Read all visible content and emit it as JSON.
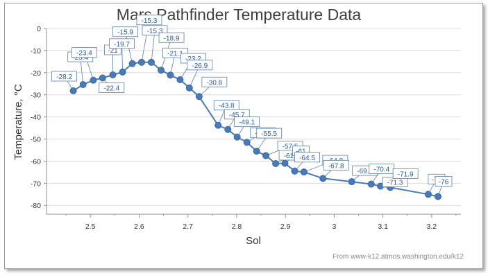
{
  "chart_data": {
    "type": "line",
    "title": "Mars Pathfinder Temperature Data",
    "xlabel": "Sol",
    "ylabel": "Temperature, °C",
    "xlim": [
      2.41,
      3.26
    ],
    "ylim": [
      -84,
      0
    ],
    "x_ticks": [
      "2.5",
      "2.6",
      "2.7",
      "2.8",
      "2.9",
      "3",
      "3.1",
      "3.2"
    ],
    "y_ticks": [
      "0",
      "-10",
      "-20",
      "-30",
      "-40",
      "-50",
      "-60",
      "-70",
      "-80"
    ],
    "grid": "horizontal",
    "legend": "none",
    "series": [
      {
        "points": [
          {
            "x": 2.465,
            "y": -28.2,
            "label": "-28.2"
          },
          {
            "x": 2.485,
            "y": -25.4,
            "label": "-25.4"
          },
          {
            "x": 2.506,
            "y": -23.4,
            "label": "-23.4"
          },
          {
            "x": 2.525,
            "y": -22.4,
            "label": "-22.4"
          },
          {
            "x": 2.546,
            "y": -21,
            "label": "-21"
          },
          {
            "x": 2.566,
            "y": -19.7,
            "label": "-19.7"
          },
          {
            "x": 2.586,
            "y": -15.9,
            "label": "-15.9"
          },
          {
            "x": 2.605,
            "y": -15.3,
            "label": "-15.3"
          },
          {
            "x": 2.625,
            "y": -15.3,
            "label": "-15.3"
          },
          {
            "x": 2.645,
            "y": -18.9,
            "label": "-18.9"
          },
          {
            "x": 2.664,
            "y": -21.1,
            "label": "-21.1"
          },
          {
            "x": 2.684,
            "y": -23.2,
            "label": "-23.2"
          },
          {
            "x": 2.703,
            "y": -26.9,
            "label": "-26.9"
          },
          {
            "x": 2.723,
            "y": -30.8,
            "label": "-30.8"
          },
          {
            "x": 2.762,
            "y": -43.8,
            "label": "-43.8"
          },
          {
            "x": 2.782,
            "y": -45.7,
            "label": "-45.7"
          },
          {
            "x": 2.801,
            "y": -49.1,
            "label": "-49.1"
          },
          {
            "x": 2.821,
            "y": -51.5,
            "label": "-51.5"
          },
          {
            "x": 2.841,
            "y": -55.5,
            "label": "-55.5"
          },
          {
            "x": 2.86,
            "y": -57.5,
            "label": "-57.5"
          },
          {
            "x": 2.88,
            "y": -61.1,
            "label": "-61.1"
          },
          {
            "x": 2.899,
            "y": -61,
            "label": "-61"
          },
          {
            "x": 2.919,
            "y": -64.5,
            "label": "-64.5"
          },
          {
            "x": 2.938,
            "y": -64.9,
            "label": "-64.9"
          },
          {
            "x": 2.977,
            "y": -67.8,
            "label": "-67.8"
          },
          {
            "x": 3.036,
            "y": -69.3,
            "label": "-69.3"
          },
          {
            "x": 3.076,
            "y": -70.4,
            "label": "-70.4"
          },
          {
            "x": 3.095,
            "y": -71.3,
            "label": "-71.3"
          },
          {
            "x": 3.115,
            "y": -71.9,
            "label": "-71.9"
          },
          {
            "x": 3.193,
            "y": -75,
            "label": "-75"
          },
          {
            "x": 3.213,
            "y": -76,
            "label": "-76"
          }
        ],
        "color": "#4a7ab5"
      }
    ],
    "source_note": "From www-k12.atmos.washington.edu/k12"
  }
}
